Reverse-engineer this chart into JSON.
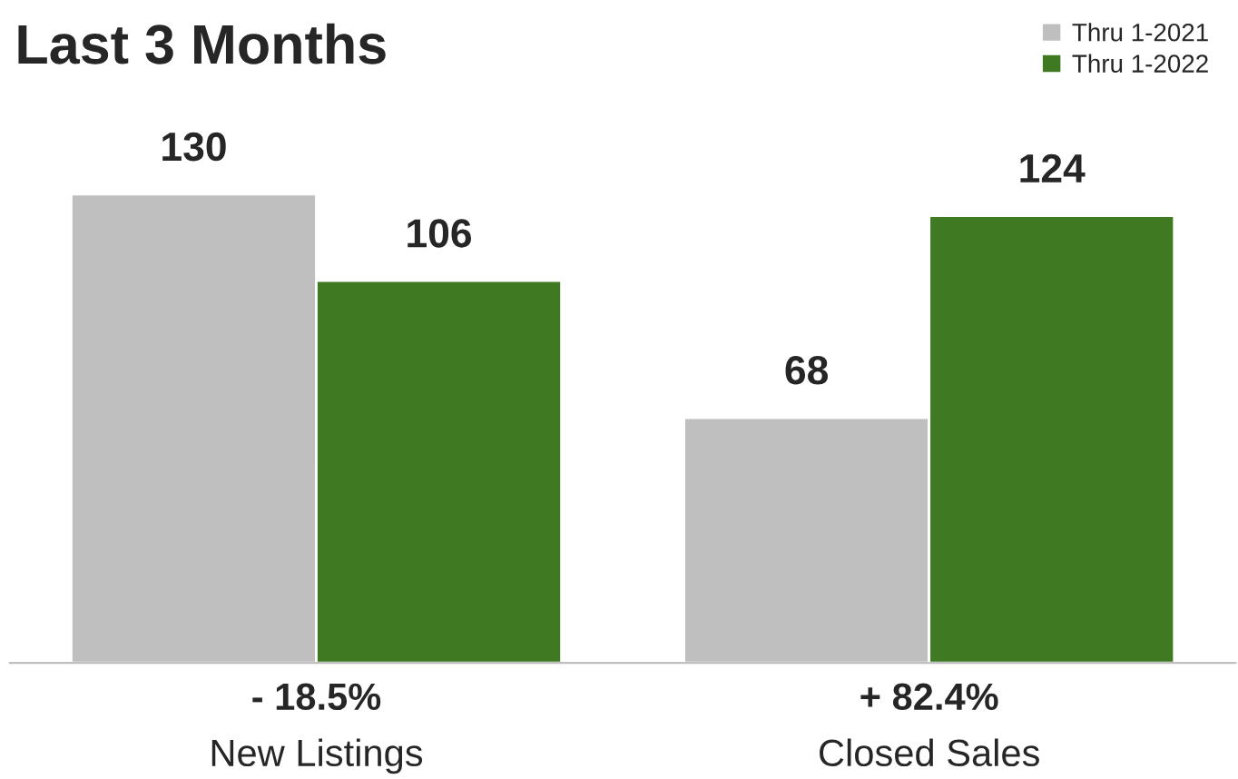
{
  "chart_data": {
    "type": "bar",
    "title": "Last 3 Months",
    "categories": [
      "New Listings",
      "Closed Sales"
    ],
    "series": [
      {
        "name": "Thru 1-2021",
        "color": "#bfbfbf",
        "values": [
          130,
          68
        ]
      },
      {
        "name": "Thru 1-2022",
        "color": "#3f7a23",
        "values": [
          106,
          124
        ]
      }
    ],
    "data_labels": true,
    "legend": "top right",
    "grid": false,
    "annotations": [
      "- 18.5%",
      "+ 82.4%"
    ]
  }
}
